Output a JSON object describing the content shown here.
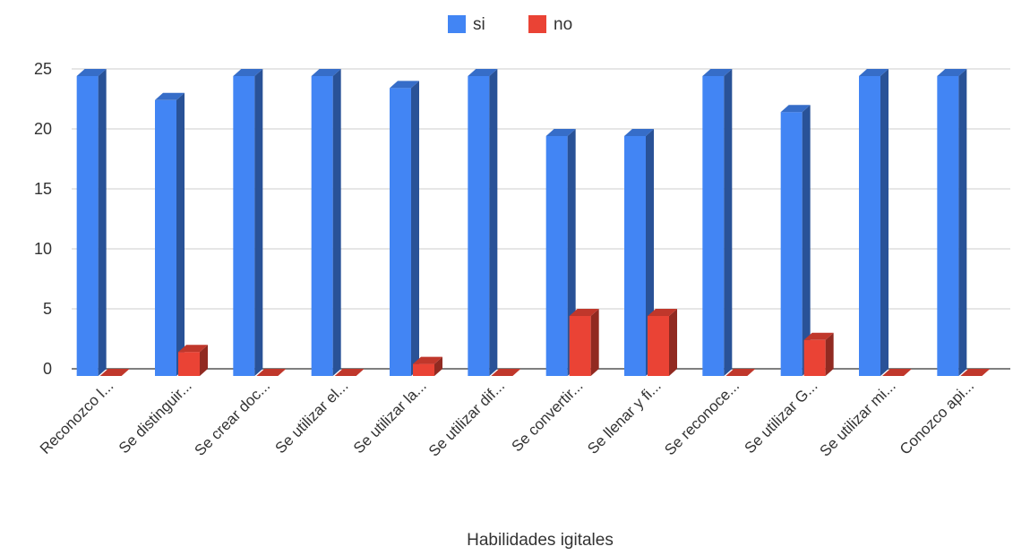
{
  "chart_data": {
    "type": "bar",
    "style": "3d-column",
    "categories": [
      "Reconozco l...",
      "Se distinguir...",
      "Se crear doc...",
      "Se utilizar el...",
      "Se utilizar la...",
      "Se utilizar dif...",
      "Se convertir...",
      "Se llenar y fi...",
      "Se reconoce...",
      "Se utilizar G...",
      "Se utilizar mi...",
      "Conozco api..."
    ],
    "series": [
      {
        "name": "si",
        "color": "#4285f4",
        "values": [
          25,
          23,
          25,
          25,
          24,
          25,
          20,
          20,
          25,
          22,
          25,
          25
        ]
      },
      {
        "name": "no",
        "color": "#ea4335",
        "values": [
          0,
          2,
          0,
          0,
          1,
          0,
          5,
          5,
          0,
          3,
          0,
          0
        ]
      }
    ],
    "xlabel": "Habilidades igitales",
    "ylabel": "",
    "ylim": [
      0,
      25
    ],
    "yticks": [
      "0",
      "5",
      "10",
      "15",
      "20",
      "25"
    ],
    "grid": true,
    "legend_position": "top-center"
  }
}
